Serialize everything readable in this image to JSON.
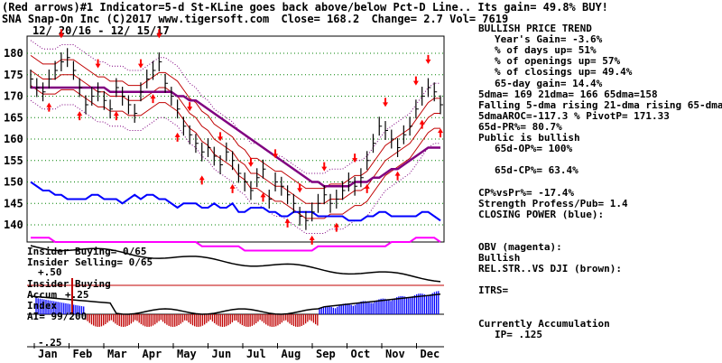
{
  "header": {
    "line1": "(Red arrows)#1 Indicator=5-d St-KLine goes back above/below Pct-D Line.. Its gain= 49.8% BUY!",
    "ticker": "SNA",
    "company": "Snap-On Inc",
    "copyright": "(C)2017 www.tigersoft.com",
    "close": "Close= 168.2",
    "change": "Change= 2.7",
    "vol": "Vol= 7619",
    "date_range": "12/ 20/16 - 12/ 15/17"
  },
  "colors": {
    "price_bar": "#000000",
    "ma_red": "#c00000",
    "ma_purple": "#800080",
    "band_purple": "#800080",
    "closing_power": "#0000ff",
    "obv": "#ff00ff",
    "rel_str": "#000000",
    "arrow": "#ff0000",
    "accum_pos": "#0000ff",
    "accum_neg": "#c00000",
    "grid": "#008000"
  },
  "chart_data": {
    "type": "line",
    "title": "SNA Snap-On Inc",
    "y_ticks": [
      180,
      175,
      170,
      165,
      160,
      155,
      150,
      145,
      140
    ],
    "ylim": [
      136,
      184
    ],
    "x_labels": [
      "Jan",
      "Feb",
      "Mar",
      "Apr",
      "May",
      "Jun",
      "Jul",
      "Aug",
      "Sep",
      "Oct",
      "Nov",
      "Dec"
    ],
    "price_closes": [
      174,
      172,
      171,
      174,
      176,
      178,
      179,
      176,
      172,
      168,
      170,
      171,
      169,
      167,
      172,
      170,
      168,
      166,
      171,
      174,
      176,
      178,
      173,
      170,
      167,
      163,
      161,
      159,
      157,
      158,
      156,
      154,
      157,
      155,
      152,
      150,
      148,
      151,
      153,
      146,
      150,
      149,
      147,
      145,
      142,
      141,
      143,
      145,
      147,
      145,
      146,
      148,
      150,
      149,
      151,
      155,
      159,
      163,
      162,
      160,
      158,
      161,
      163,
      167,
      170,
      172,
      171,
      168
    ],
    "series": [
      {
        "name": "21-dma",
        "values": [
          176,
          175,
          174,
          174,
          174,
          175,
          175,
          175,
          174,
          173,
          172,
          171,
          171,
          170,
          170,
          170,
          169,
          169,
          169,
          170,
          171,
          172,
          172,
          171,
          170,
          168,
          166,
          165,
          163,
          162,
          160,
          159,
          158,
          157,
          155,
          154,
          152,
          152,
          151,
          150,
          149,
          149,
          148,
          147,
          146,
          145,
          145,
          145,
          145,
          146,
          146,
          146,
          147,
          148,
          148,
          149,
          151,
          153,
          155,
          156,
          157,
          158,
          159,
          161,
          163,
          165,
          166,
          166
        ]
      },
      {
        "name": "65-dma",
        "values": [
          172,
          172,
          172,
          172,
          172,
          172,
          172,
          172,
          172,
          172,
          172,
          172,
          172,
          171,
          171,
          171,
          171,
          171,
          171,
          171,
          171,
          171,
          171,
          171,
          170,
          170,
          169,
          169,
          168,
          167,
          166,
          165,
          164,
          163,
          162,
          161,
          160,
          159,
          158,
          157,
          156,
          155,
          154,
          153,
          152,
          151,
          150,
          150,
          149,
          149,
          149,
          149,
          149,
          150,
          150,
          150,
          151,
          151,
          152,
          153,
          153,
          154,
          155,
          156,
          157,
          158,
          158,
          158
        ]
      },
      {
        "name": "Closing Power",
        "values": [
          150,
          149,
          148,
          148,
          147,
          147,
          146,
          146,
          146,
          146,
          147,
          147,
          146,
          146,
          146,
          145,
          146,
          147,
          146,
          147,
          147,
          146,
          146,
          145,
          144,
          145,
          145,
          145,
          144,
          144,
          145,
          144,
          144,
          145,
          143,
          143,
          144,
          144,
          144,
          143,
          143,
          142,
          142,
          143,
          143,
          143,
          143,
          142,
          142,
          142,
          142,
          142,
          141,
          141,
          141,
          142,
          142,
          143,
          143,
          142,
          142,
          142,
          142,
          142,
          143,
          143,
          142,
          141
        ]
      },
      {
        "name": "OBV",
        "values": [
          137,
          137,
          137,
          137,
          136,
          136,
          136,
          136,
          136,
          136,
          136,
          136,
          136,
          136,
          136,
          136,
          136,
          136,
          136,
          136,
          136,
          136,
          136,
          136,
          136,
          136,
          136,
          136,
          135,
          135,
          135,
          135,
          135,
          135,
          135,
          134,
          134,
          134,
          134,
          134,
          134,
          134,
          134,
          134,
          134,
          134,
          134,
          135,
          135,
          135,
          135,
          135,
          135,
          135,
          135,
          135,
          135,
          135,
          135,
          136,
          136,
          136,
          136,
          137,
          137,
          137,
          137,
          136
        ]
      }
    ],
    "buy_arrows_idx": [
      3,
      8,
      14,
      20,
      24,
      28,
      33,
      38,
      42,
      46,
      50,
      55,
      60,
      64,
      67
    ],
    "sell_arrows_idx": [
      5,
      11,
      18,
      21,
      26,
      31,
      36,
      40,
      44,
      48,
      53,
      58,
      63,
      65
    ]
  },
  "right_panel": {
    "lines": [
      "BULLISH PRICE TREND",
      "Year's Gain= -3.6%",
      "% of days up= 51%",
      "% of openings up= 57%",
      "% of closings up= 49.4%",
      "65-day gain= 14.4%",
      "5dma= 169 21dma= 166 65dma=158",
      "Falling 5-dma rising 21-dma rising 65-dma",
      "5dmaAROC=-117.3 %  PivotP= 171.33",
      "65d-PR%= 80.7%",
      "Public is bullish",
      "65d-OP%= 100%",
      "",
      "65d-CP%= 63.4%",
      "",
      "CP%vsPr%= -17.4%",
      "Strength Profess/Pub= 1.4",
      "CLOSING POWER (blue):",
      "",
      "",
      "OBV (magenta):",
      "Bullish",
      "REL.STR..VS DJI (brown):",
      "",
      "ITRS=",
      "",
      "",
      "Currently Accumulation",
      "IP= .125"
    ]
  },
  "bottom_panel": {
    "insider_buying": "Insider Buying= 0/65",
    "insider_selling": "Insider Selling= 0/65",
    "plus_50": "+.50",
    "insider_buying2": "Insider Buying",
    "accum": "Accum",
    "plus_25": "+.25",
    "index": "Index",
    "ai": "AI= 99/200",
    "minus_25": "-.25"
  }
}
